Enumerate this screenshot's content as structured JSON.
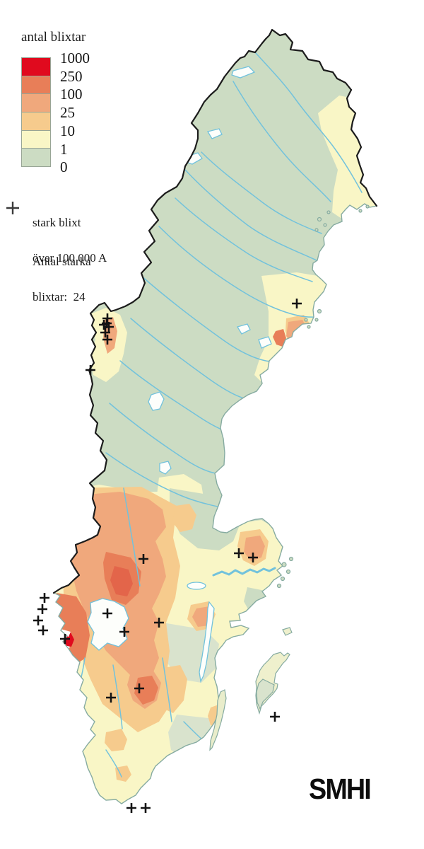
{
  "legend": {
    "title": "antal blixtar",
    "tick_labels": [
      "1000",
      "250",
      "100",
      "25",
      "10",
      "1",
      "0"
    ],
    "band_colors_top_to_bottom": [
      "#e00a1e",
      "#e87e58",
      "#f0a87c",
      "#f6cb8d",
      "#f9f6c6",
      "#ccdcc3"
    ]
  },
  "annotations": {
    "strong_line1": "stark blixt",
    "strong_line2": "över 100 000 A",
    "count_line1": "Antal starka",
    "count_line2": "blixtar:",
    "count_value": "24"
  },
  "logo": "SMHI",
  "map": {
    "colors": {
      "sea": "#ffffff",
      "land_base": "#ccdcc3",
      "land_light": "#d9e3cd",
      "coast_stroke": "#86aba1",
      "border_stroke": "#1c1c1c",
      "river": "#72c2dc",
      "lake_fill": "#fdfefb",
      "band_1": "#f9f6c6",
      "band_10": "#f6cb8d",
      "band_25": "#f0a87c",
      "band_100": "#e87e58",
      "band_100_dark": "#e3654a",
      "band_250": "#e00a1e",
      "marker": "#141414"
    },
    "markers": [
      [
        152,
        450
      ],
      [
        147,
        459
      ],
      [
        154,
        462
      ],
      [
        149,
        470
      ],
      [
        152,
        480
      ],
      [
        151,
        457
      ],
      [
        128,
        523
      ],
      [
        420,
        429
      ],
      [
        203,
        790
      ],
      [
        338,
        782
      ],
      [
        358,
        788
      ],
      [
        63,
        845
      ],
      [
        60,
        861
      ],
      [
        54,
        877
      ],
      [
        61,
        891
      ],
      [
        92,
        903
      ],
      [
        152,
        867
      ],
      [
        176,
        893
      ],
      [
        225,
        880
      ],
      [
        197,
        973
      ],
      [
        157,
        986
      ],
      [
        389,
        1013
      ],
      [
        186,
        1142
      ],
      [
        206,
        1142
      ]
    ]
  }
}
